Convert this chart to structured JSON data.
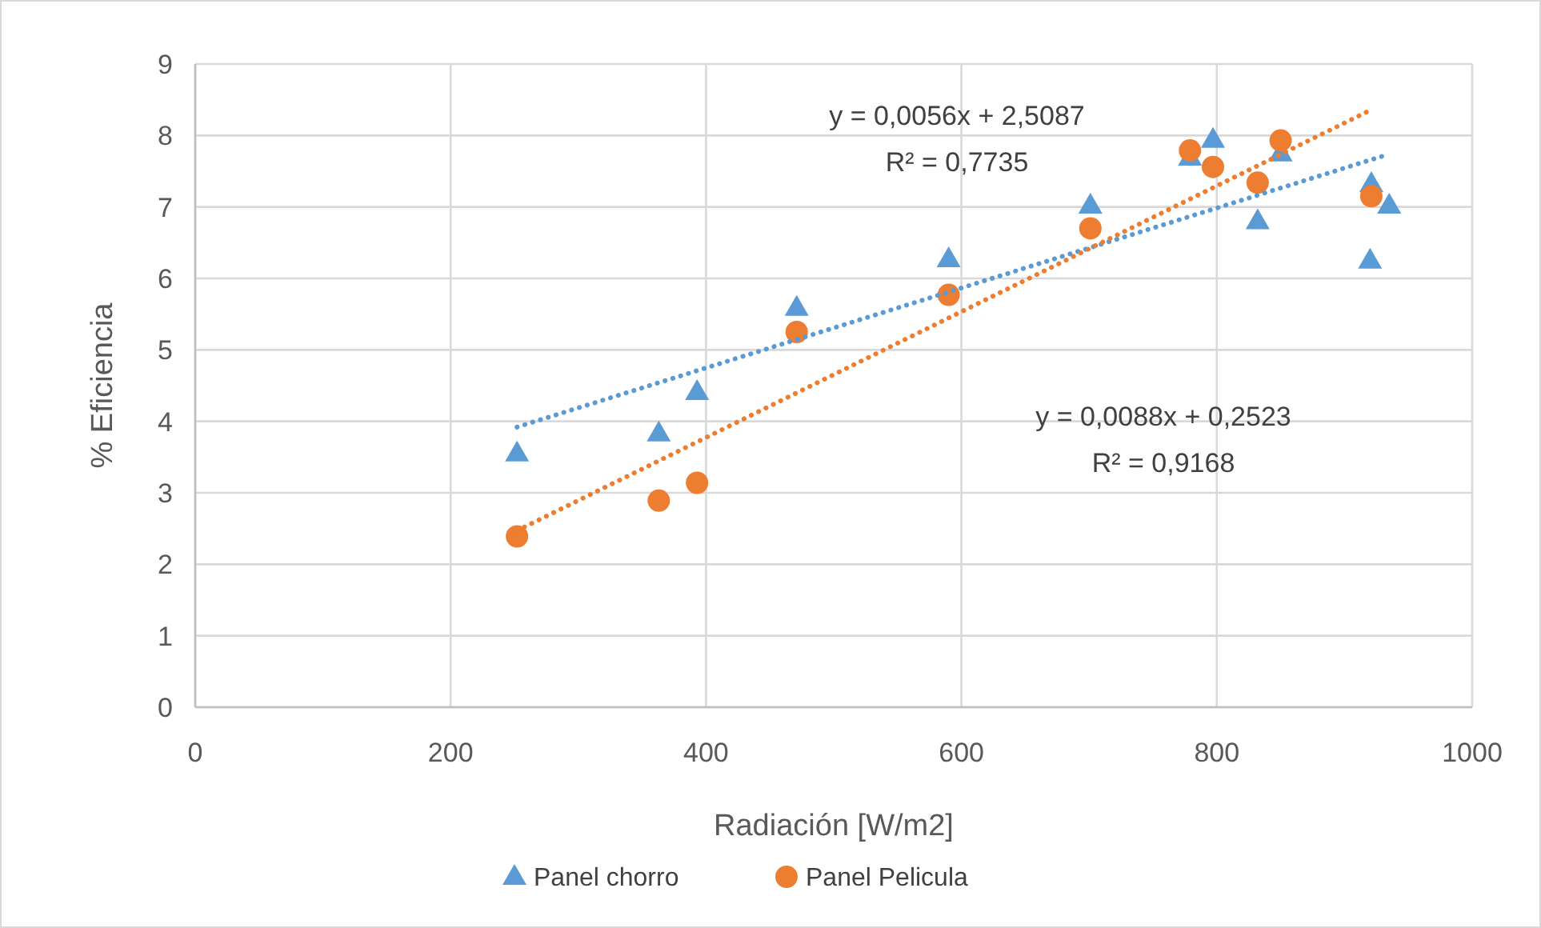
{
  "chart_data": {
    "type": "scatter",
    "xlabel": "Radiación [W/m2]",
    "ylabel": "% Eficiencia",
    "xlim": [
      0,
      1000
    ],
    "xticks": [
      0,
      200,
      400,
      600,
      800,
      1000
    ],
    "ylim": [
      0,
      9
    ],
    "yticks": [
      0,
      1,
      2,
      3,
      4,
      5,
      6,
      7,
      8,
      9
    ],
    "grid": true,
    "legend": "bottom",
    "annotations": [
      "y = 0,0056x + 2,5087",
      "R² = 0,7735",
      "y = 0,0088x + 0,2523",
      "R² = 0,9168"
    ],
    "series": [
      {
        "name": "Panel chorro",
        "marker": "triangle",
        "color": "#5b9bd5",
        "x": [
          252,
          363,
          393,
          471,
          590,
          701,
          779,
          797,
          832,
          850,
          920,
          921,
          935
        ],
        "values": [
          3.55,
          3.83,
          4.41,
          5.59,
          6.27,
          7.02,
          7.69,
          7.94,
          6.8,
          7.75,
          6.25,
          7.32,
          7.02
        ]
      },
      {
        "name": "Panel Pelicula",
        "marker": "circle",
        "color": "#ed7d31",
        "x": [
          252,
          363,
          393,
          471,
          590,
          701,
          779,
          797,
          832,
          850,
          921
        ],
        "values": [
          2.39,
          2.89,
          3.14,
          5.25,
          5.77,
          6.7,
          7.79,
          7.56,
          7.34,
          7.93,
          7.15
        ]
      },
      {
        "type": "line",
        "marker": "none",
        "line_style": "dotted",
        "color": "#5b9bd5",
        "x": [
          252,
          935
        ],
        "values": [
          3.92,
          7.74
        ]
      },
      {
        "type": "line",
        "marker": "none",
        "line_style": "dotted",
        "color": "#ed7d31",
        "x": [
          252,
          921
        ],
        "values": [
          2.47,
          8.36
        ]
      }
    ]
  }
}
